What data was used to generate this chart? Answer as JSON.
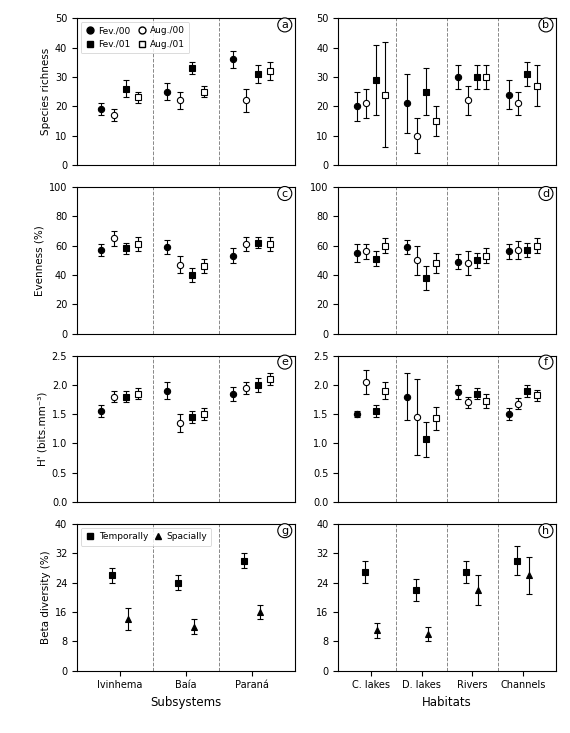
{
  "panel_a": {
    "title": "a",
    "groups": [
      "Ivinhema",
      "Baía",
      "Paraná"
    ],
    "series": {
      "Fev./00": {
        "marker": "o",
        "filled": true,
        "values": [
          19,
          25,
          36
        ],
        "yerr": [
          2,
          3,
          3
        ]
      },
      "Aug./00": {
        "marker": "o",
        "filled": false,
        "values": [
          17,
          22,
          22
        ],
        "yerr": [
          2,
          3,
          4
        ]
      },
      "Fev./01": {
        "marker": "s",
        "filled": true,
        "values": [
          26,
          33,
          31
        ],
        "yerr": [
          3,
          2,
          3
        ]
      },
      "Aug./01": {
        "marker": "s",
        "filled": false,
        "values": [
          23,
          25,
          32
        ],
        "yerr": [
          2,
          2,
          3
        ]
      }
    },
    "ylabel": "Species richness",
    "ylim": [
      0,
      50
    ],
    "yticks": [
      0,
      10,
      20,
      30,
      40,
      50
    ]
  },
  "panel_b": {
    "title": "b",
    "groups": [
      "C. lakes",
      "D. lakes",
      "Rivers",
      "Channels"
    ],
    "series": {
      "Fev./00": {
        "marker": "o",
        "filled": true,
        "values": [
          20,
          21,
          30,
          24
        ],
        "yerr": [
          5,
          10,
          4,
          5
        ]
      },
      "Aug./00": {
        "marker": "o",
        "filled": false,
        "values": [
          21,
          10,
          22,
          21
        ],
        "yerr": [
          5,
          6,
          5,
          4
        ]
      },
      "Fev./01": {
        "marker": "s",
        "filled": true,
        "values": [
          29,
          25,
          30,
          31
        ],
        "yerr": [
          12,
          8,
          4,
          4
        ]
      },
      "Aug./01": {
        "marker": "s",
        "filled": false,
        "values": [
          24,
          15,
          30,
          27
        ],
        "yerr": [
          18,
          5,
          4,
          7
        ]
      }
    },
    "ylabel": "",
    "ylim": [
      0,
      50
    ],
    "yticks": [
      0,
      10,
      20,
      30,
      40,
      50
    ]
  },
  "panel_c": {
    "title": "c",
    "groups": [
      "Ivinhema",
      "Baía",
      "Paraná"
    ],
    "series": {
      "Fev./00": {
        "marker": "o",
        "filled": true,
        "values": [
          57,
          59,
          53
        ],
        "yerr": [
          4,
          5,
          5
        ]
      },
      "Aug./00": {
        "marker": "o",
        "filled": false,
        "values": [
          65,
          47,
          61
        ],
        "yerr": [
          5,
          6,
          5
        ]
      },
      "Fev./01": {
        "marker": "s",
        "filled": true,
        "values": [
          58,
          40,
          62
        ],
        "yerr": [
          4,
          5,
          4
        ]
      },
      "Aug./01": {
        "marker": "s",
        "filled": false,
        "values": [
          61,
          46,
          61
        ],
        "yerr": [
          5,
          5,
          5
        ]
      }
    },
    "ylabel": "Evenness (%)",
    "ylim": [
      0,
      100
    ],
    "yticks": [
      0,
      20,
      40,
      60,
      80,
      100
    ]
  },
  "panel_d": {
    "title": "d",
    "groups": [
      "C. lakes",
      "D. lakes",
      "Rivers",
      "Channels"
    ],
    "series": {
      "Fev./00": {
        "marker": "o",
        "filled": true,
        "values": [
          55,
          59,
          49,
          56
        ],
        "yerr": [
          6,
          5,
          5,
          5
        ]
      },
      "Aug./00": {
        "marker": "o",
        "filled": false,
        "values": [
          56,
          50,
          48,
          57
        ],
        "yerr": [
          5,
          10,
          8,
          6
        ]
      },
      "Fev./01": {
        "marker": "s",
        "filled": true,
        "values": [
          51,
          38,
          50,
          57
        ],
        "yerr": [
          5,
          8,
          5,
          5
        ]
      },
      "Aug./01": {
        "marker": "s",
        "filled": false,
        "values": [
          60,
          48,
          53,
          60
        ],
        "yerr": [
          5,
          7,
          5,
          5
        ]
      }
    },
    "ylabel": "",
    "ylim": [
      0,
      100
    ],
    "yticks": [
      0,
      20,
      40,
      60,
      80,
      100
    ]
  },
  "panel_e": {
    "title": "e",
    "groups": [
      "Ivinhema",
      "Baía",
      "Paraná"
    ],
    "series": {
      "Fev./00": {
        "marker": "o",
        "filled": true,
        "values": [
          1.55,
          1.9,
          1.85
        ],
        "yerr": [
          0.1,
          0.15,
          0.12
        ]
      },
      "Aug./00": {
        "marker": "o",
        "filled": false,
        "values": [
          1.8,
          1.35,
          1.95
        ],
        "yerr": [
          0.1,
          0.15,
          0.1
        ]
      },
      "Fev./01": {
        "marker": "s",
        "filled": true,
        "values": [
          1.8,
          1.45,
          2.0
        ],
        "yerr": [
          0.1,
          0.1,
          0.12
        ]
      },
      "Aug./01": {
        "marker": "s",
        "filled": false,
        "values": [
          1.85,
          1.5,
          2.1
        ],
        "yerr": [
          0.1,
          0.1,
          0.1
        ]
      }
    },
    "ylabel": "H' (bits.mm⁻³)",
    "ylim": [
      0.0,
      2.5
    ],
    "yticks": [
      0.0,
      0.5,
      1.0,
      1.5,
      2.0,
      2.5
    ]
  },
  "panel_f": {
    "title": "f",
    "groups": [
      "C. lakes",
      "D. lakes",
      "Rivers",
      "Channels"
    ],
    "series": {
      "Fev./00": {
        "marker": "o",
        "filled": true,
        "values": [
          1.5,
          1.8,
          1.88,
          1.5
        ],
        "yerr": [
          0.05,
          0.4,
          0.12,
          0.1
        ]
      },
      "Aug./00": {
        "marker": "o",
        "filled": false,
        "values": [
          2.05,
          1.45,
          1.7,
          1.68
        ],
        "yerr": [
          0.2,
          0.65,
          0.1,
          0.1
        ]
      },
      "Fev./01": {
        "marker": "s",
        "filled": true,
        "values": [
          1.55,
          1.07,
          1.85,
          1.9
        ],
        "yerr": [
          0.1,
          0.3,
          0.1,
          0.1
        ]
      },
      "Aug./01": {
        "marker": "s",
        "filled": false,
        "values": [
          1.9,
          1.43,
          1.73,
          1.82
        ],
        "yerr": [
          0.15,
          0.2,
          0.12,
          0.1
        ]
      }
    },
    "ylabel": "",
    "ylim": [
      0.0,
      2.5
    ],
    "yticks": [
      0.0,
      0.5,
      1.0,
      1.5,
      2.0,
      2.5
    ]
  },
  "panel_g": {
    "title": "g",
    "groups": [
      "Ivinhema",
      "Baía",
      "Paraná"
    ],
    "series": {
      "Temporally": {
        "marker": "s",
        "filled": true,
        "values": [
          26,
          24,
          30
        ],
        "yerr": [
          2,
          2,
          2
        ]
      },
      "Spacially": {
        "marker": "^",
        "filled": true,
        "values": [
          14,
          12,
          16
        ],
        "yerr": [
          3,
          2,
          2
        ]
      }
    },
    "ylabel": "Beta diversity (%)",
    "ylim": [
      0,
      40
    ],
    "yticks": [
      0,
      8,
      16,
      24,
      32,
      40
    ]
  },
  "panel_h": {
    "title": "h",
    "groups": [
      "C. lakes",
      "D. lakes",
      "Rivers",
      "Channels"
    ],
    "series": {
      "Temporally": {
        "marker": "s",
        "filled": true,
        "values": [
          27,
          22,
          27,
          30
        ],
        "yerr": [
          3,
          3,
          3,
          4
        ]
      },
      "Spacially": {
        "marker": "^",
        "filled": true,
        "values": [
          11,
          10,
          22,
          26
        ],
        "yerr": [
          2,
          2,
          4,
          5
        ]
      }
    },
    "ylabel": "",
    "ylim": [
      0,
      40
    ],
    "yticks": [
      0,
      8,
      16,
      24,
      32,
      40
    ]
  },
  "xlabel_left": "Subsystems",
  "xlabel_right": "Habitats"
}
